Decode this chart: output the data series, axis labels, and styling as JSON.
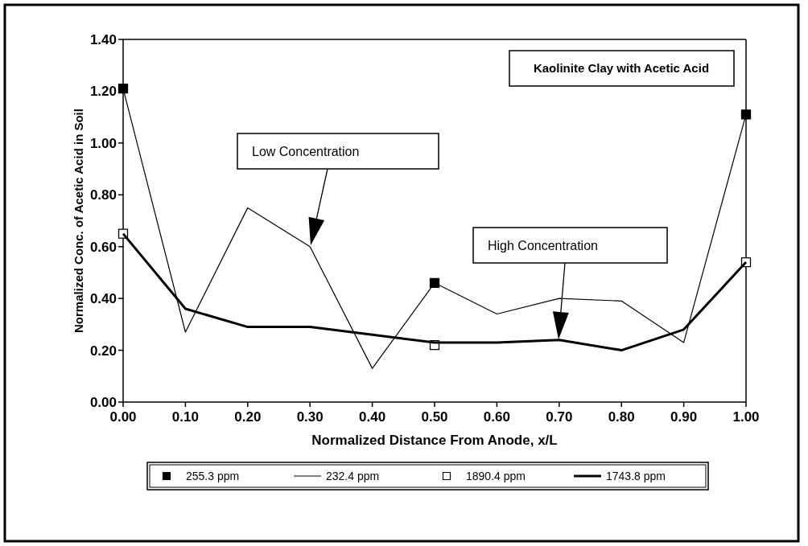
{
  "chart_data": {
    "type": "line",
    "title": "Kaolinite Clay with Acetic Acid",
    "xlabel": "Normalized Distance From Anode, x/L",
    "ylabel": "Normalized Conc. of Acetic Acid in Soil",
    "xlim": [
      0,
      1
    ],
    "xticks": [
      {
        "value": 0,
        "label": "0.00"
      },
      {
        "value": 0.1,
        "label": "0.10"
      },
      {
        "value": 0.2,
        "label": "0.20"
      },
      {
        "value": 0.3,
        "label": "0.30"
      },
      {
        "value": 0.4,
        "label": "0.40"
      },
      {
        "value": 0.5,
        "label": "0.50"
      },
      {
        "value": 0.6,
        "label": "0.60"
      },
      {
        "value": 0.7,
        "label": "0.70"
      },
      {
        "value": 0.8,
        "label": "0.80"
      },
      {
        "value": 0.9,
        "label": "0.90"
      },
      {
        "value": 1,
        "label": "1.00"
      }
    ],
    "ylim": [
      0,
      1.4
    ],
    "yticks": [
      {
        "value": 0,
        "label": "0.00"
      },
      {
        "value": 0.2,
        "label": "0.20"
      },
      {
        "value": 0.4,
        "label": "0.40"
      },
      {
        "value": 0.6,
        "label": "0.60"
      },
      {
        "value": 0.8,
        "label": "0.80"
      },
      {
        "value": 1,
        "label": "1.00"
      },
      {
        "value": 1.2,
        "label": "1.20"
      },
      {
        "value": 1.4,
        "label": "1.40"
      }
    ],
    "series": [
      {
        "name": "255.3 ppm",
        "type": "scatter",
        "marker": "square",
        "color": "#000000",
        "x": [
          0,
          0.5,
          1
        ],
        "values": [
          1.21,
          0.46,
          1.11
        ]
      },
      {
        "name": "232.4 ppm",
        "type": "line",
        "color": "#000000",
        "x": [
          0,
          0.1,
          0.2,
          0.3,
          0.4,
          0.5,
          0.6,
          0.7,
          0.8,
          0.9,
          1
        ],
        "values": [
          1.21,
          0.27,
          0.75,
          0.6,
          0.13,
          0.46,
          0.34,
          0.4,
          0.39,
          0.23,
          1.11
        ]
      },
      {
        "name": "1890.4 ppm",
        "type": "scatter",
        "marker": "square",
        "color": "#ffffff",
        "x": [
          0,
          0.5,
          1
        ],
        "values": [
          0.65,
          0.22,
          0.54
        ]
      },
      {
        "name": "1743.8 ppm",
        "type": "line",
        "color": "#000000",
        "x": [
          0,
          0.1,
          0.2,
          0.3,
          0.4,
          0.5,
          0.6,
          0.7,
          0.8,
          0.9,
          1
        ],
        "values": [
          0.65,
          0.36,
          0.29,
          0.29,
          0.26,
          0.23,
          0.23,
          0.24,
          0.2,
          0.28,
          0.54
        ]
      }
    ],
    "annotations": [
      "Low Concentration",
      "High Concentration"
    ],
    "legend": "bottom",
    "grid": false
  }
}
